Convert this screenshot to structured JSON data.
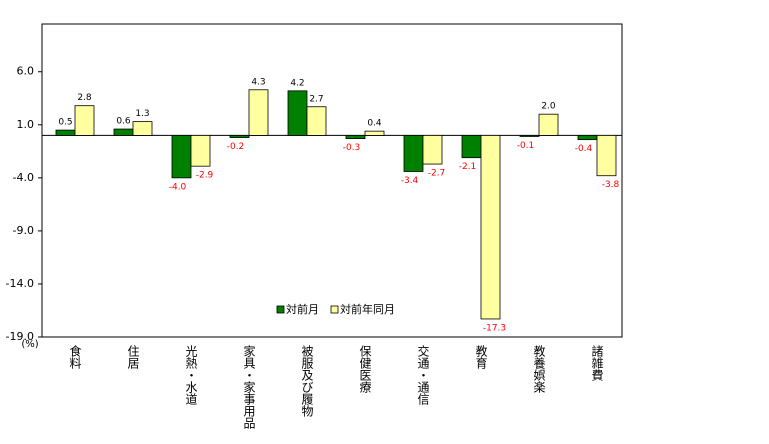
{
  "chart_data": {
    "type": "bar",
    "y_unit": "(%)",
    "categories": [
      "食料",
      "住居",
      "光熱・水道",
      "家具・家事用品",
      "被服及び履物",
      "保健医療",
      "交通・通信",
      "教育",
      "教養娯楽",
      "諸雑費"
    ],
    "series": [
      {
        "name": "対前月",
        "color": "#008000",
        "values": [
          0.5,
          0.6,
          -4.0,
          -0.2,
          4.2,
          -0.3,
          -3.4,
          -2.1,
          -0.1,
          -0.4
        ],
        "value_labels": [
          "0.5",
          "0.6",
          "-4.0",
          "-0.2",
          "4.2",
          "-0.3",
          "-3.4",
          "-2.1",
          "-0.1",
          "-0.4"
        ]
      },
      {
        "name": "対前年同月",
        "color": "#ffffa0",
        "values": [
          2.8,
          1.3,
          -2.9,
          4.3,
          2.7,
          0.4,
          -2.7,
          -17.3,
          2.0,
          -3.8
        ],
        "value_labels": [
          "2.8",
          "1.3",
          "-2.9",
          "4.3",
          "2.7",
          "0.4",
          "-2.7",
          "-17.3",
          "2.0",
          "-3.8"
        ]
      }
    ],
    "negative_label_color": "#ff0000",
    "ylim": [
      -19,
      10.5
    ],
    "yticks": [
      {
        "value": 6,
        "label": "6.0"
      },
      {
        "value": 1,
        "label": "1.0"
      },
      {
        "value": -4,
        "label": "-4.0"
      },
      {
        "value": -9,
        "label": "-9.0"
      },
      {
        "value": -14,
        "label": "-14.0"
      },
      {
        "value": -19,
        "label": "-19.0"
      }
    ]
  }
}
